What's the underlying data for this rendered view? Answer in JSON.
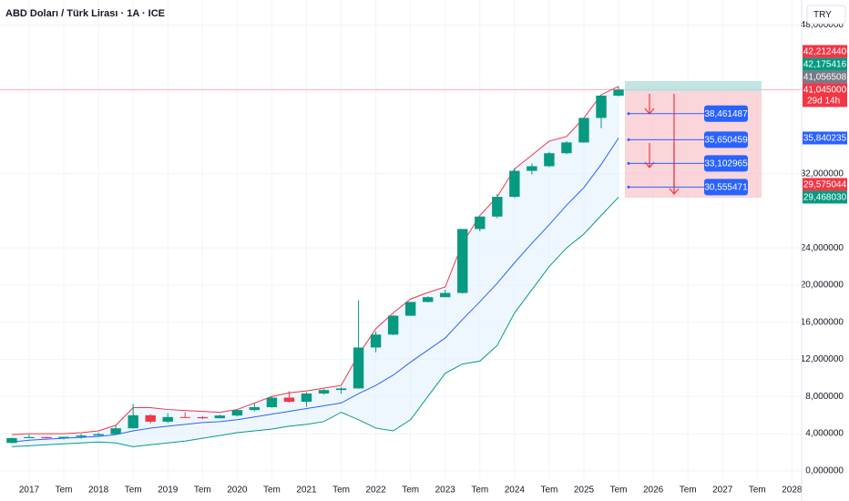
{
  "chart_data": {
    "type": "candlestick",
    "title": "ABD Doları / Türk Lirası · 1A · ICE",
    "currency": "TRY",
    "x": [
      2016.75,
      2017.0,
      2017.25,
      2017.5,
      2017.75,
      2018.0,
      2018.25,
      2018.5,
      2018.75,
      2019.0,
      2019.25,
      2019.5,
      2019.75,
      2020.0,
      2020.25,
      2020.5,
      2020.75,
      2021.0,
      2021.25,
      2021.5,
      2021.75,
      2022.0,
      2022.25,
      2022.5,
      2022.75,
      2023.0,
      2023.25,
      2023.5,
      2023.75,
      2024.0,
      2024.25,
      2024.5,
      2024.75,
      2025.0,
      2025.25,
      2025.5
    ],
    "open": [
      3.0,
      3.52,
      3.63,
      3.52,
      3.66,
      3.8,
      3.95,
      4.58,
      5.98,
      5.29,
      5.79,
      5.78,
      5.66,
      5.95,
      6.54,
      6.85,
      7.88,
      7.43,
      8.32,
      8.7,
      8.87,
      13.28,
      14.67,
      16.7,
      18.18,
      18.7,
      19.15,
      26.04,
      27.38,
      29.5,
      32.3,
      32.8,
      34.2,
      35.36,
      38.0,
      40.4
    ],
    "high": [
      3.58,
      3.9,
      3.64,
      3.62,
      3.99,
      4.1,
      4.92,
      7.2,
      6.1,
      6.2,
      6.3,
      5.9,
      6.05,
      6.6,
      7.26,
      7.98,
      8.58,
      8.47,
      8.8,
      9.0,
      18.36,
      15.0,
      16.75,
      18.2,
      18.8,
      19.5,
      26.05,
      27.4,
      29.8,
      32.6,
      33.1,
      34.35,
      35.5,
      38.0,
      40.5,
      41.4
    ],
    "low": [
      2.95,
      3.5,
      3.48,
      3.4,
      3.46,
      3.72,
      3.93,
      4.55,
      5.1,
      5.15,
      5.7,
      5.55,
      5.63,
      5.85,
      6.4,
      6.8,
      7.35,
      6.9,
      8.2,
      8.3,
      8.85,
      12.75,
      14.6,
      16.7,
      18.15,
      18.69,
      19.1,
      25.8,
      27.2,
      29.4,
      31.9,
      32.7,
      34.1,
      35.3,
      36.9,
      40.3
    ],
    "close": [
      3.52,
      3.63,
      3.52,
      3.66,
      3.8,
      3.95,
      4.58,
      5.98,
      5.29,
      5.79,
      5.78,
      5.66,
      5.95,
      6.54,
      6.85,
      7.88,
      7.43,
      8.32,
      8.7,
      8.87,
      13.28,
      14.67,
      16.7,
      18.18,
      18.7,
      19.15,
      26.04,
      27.38,
      29.5,
      32.3,
      32.8,
      34.2,
      35.36,
      38.0,
      40.4,
      41.05
    ],
    "up_color": "#089981",
    "down_color": "#f23645",
    "bands": {
      "upper": [
        3.9,
        4.0,
        4.0,
        4.0,
        4.1,
        4.3,
        4.9,
        6.8,
        6.8,
        6.6,
        6.5,
        6.4,
        6.3,
        6.6,
        7.3,
        8.0,
        8.4,
        8.6,
        8.9,
        9.2,
        12.5,
        15.3,
        17.0,
        18.5,
        19.2,
        19.8,
        24.5,
        27.5,
        29.5,
        32.5,
        34.0,
        35.5,
        36.0,
        38.0,
        40.5,
        41.4
      ],
      "basis": [
        3.1,
        3.3,
        3.4,
        3.5,
        3.6,
        3.7,
        3.9,
        4.3,
        4.6,
        4.8,
        5.0,
        5.2,
        5.3,
        5.5,
        5.8,
        6.1,
        6.4,
        6.7,
        7.0,
        7.3,
        8.3,
        9.2,
        10.3,
        11.7,
        13.0,
        14.3,
        16.3,
        18.2,
        20.2,
        22.4,
        24.5,
        26.5,
        28.6,
        30.5,
        33.0,
        35.84
      ],
      "lower": [
        2.6,
        2.7,
        2.8,
        2.9,
        3.0,
        3.1,
        3.0,
        2.6,
        2.8,
        3.0,
        3.2,
        3.5,
        3.8,
        4.1,
        4.3,
        4.5,
        4.8,
        5.0,
        5.3,
        6.3,
        5.5,
        4.6,
        4.3,
        5.5,
        8.0,
        10.5,
        11.5,
        11.8,
        13.5,
        17.0,
        19.5,
        22.0,
        24.0,
        25.5,
        27.5,
        29.47
      ],
      "upper_color": "#f23645",
      "basis_color": "#2962ff",
      "lower_color": "#089981"
    },
    "xlim": [
      2016.58,
      2028.14
    ],
    "ylim": [
      -0.8,
      50.7
    ],
    "xticks": [
      2017,
      {
        "value": 2017.5,
        "label": "Tem"
      },
      2018,
      {
        "value": 2018.5,
        "label": "Tem"
      },
      2019,
      {
        "value": 2019.5,
        "label": "Tem"
      },
      2020,
      {
        "value": 2020.5,
        "label": "Tem"
      },
      2021,
      {
        "value": 2021.5,
        "label": "Tem"
      },
      2022,
      {
        "value": 2022.5,
        "label": "Tem"
      },
      2023,
      {
        "value": 2023.5,
        "label": "Tem"
      },
      2024,
      {
        "value": 2024.5,
        "label": "Tem"
      },
      2025,
      {
        "value": 2025.5,
        "label": "Tem"
      },
      2026,
      {
        "value": 2026.5,
        "label": "Tem"
      },
      2027,
      {
        "value": 2027.5,
        "label": "Tem"
      },
      2028
    ],
    "yticks": [
      {
        "value": 0,
        "label": "0,000000"
      },
      {
        "value": 4,
        "label": "4,000000"
      },
      {
        "value": 8,
        "label": "8,000000"
      },
      {
        "value": 12,
        "label": "12,000000"
      },
      {
        "value": 16,
        "label": "16,000000"
      },
      {
        "value": 20,
        "label": "20,000000"
      },
      {
        "value": 24,
        "label": "24,000000"
      },
      {
        "value": 32,
        "label": "32,000000"
      },
      {
        "value": 48,
        "label": "48,000000"
      }
    ],
    "grid": true,
    "price_labels": [
      {
        "value": 42.21244,
        "label": "42,212440",
        "color": "#f23645"
      },
      {
        "value": 42.175416,
        "label": "42,175416",
        "color": "#089981"
      },
      {
        "value": 41.056508,
        "label": "41,056508",
        "color": "#787b86"
      },
      {
        "value": 41.045,
        "label": "41,045000",
        "color": "#f23645",
        "countdown": "29d 14h"
      },
      {
        "value": 35.840235,
        "label": "35,840235",
        "color": "#2962ff"
      },
      {
        "value": 29.575044,
        "label": "29,575044",
        "color": "#f23645"
      },
      {
        "value": 29.46803,
        "label": "29,468030",
        "color": "#089981"
      }
    ],
    "levels": [
      {
        "value": 38.461487,
        "label": "38,461487"
      },
      {
        "value": 35.650459,
        "label": "35,650459"
      },
      {
        "value": 33.102965,
        "label": "33,102965"
      },
      {
        "value": 30.555471,
        "label": "30,555471"
      }
    ]
  }
}
